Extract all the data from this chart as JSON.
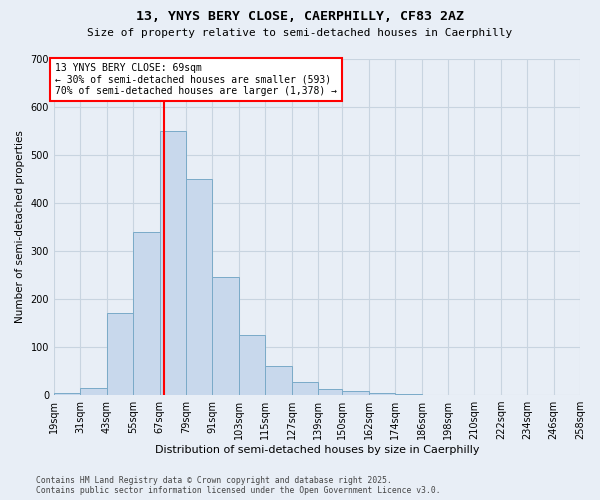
{
  "title_line1": "13, YNYS BERY CLOSE, CAERPHILLY, CF83 2AZ",
  "title_line2": "Size of property relative to semi-detached houses in Caerphilly",
  "xlabel": "Distribution of semi-detached houses by size in Caerphilly",
  "ylabel": "Number of semi-detached properties",
  "bar_color": "#c8d8ec",
  "bar_edge_color": "#7aaac8",
  "grid_color": "#c8d4e0",
  "background_color": "#e8eef6",
  "property_line_x": 69,
  "annotation_text": "13 YNYS BERY CLOSE: 69sqm\n← 30% of semi-detached houses are smaller (593)\n70% of semi-detached houses are larger (1,378) →",
  "annotation_box_color": "white",
  "annotation_box_edge": "red",
  "property_line_color": "red",
  "bin_edges": [
    19,
    31,
    43,
    55,
    67,
    79,
    91,
    103,
    115,
    127,
    139,
    150,
    162,
    174,
    186,
    198,
    210,
    222,
    234,
    246,
    258
  ],
  "bin_labels": [
    "19sqm",
    "31sqm",
    "43sqm",
    "55sqm",
    "67sqm",
    "79sqm",
    "91sqm",
    "103sqm",
    "115sqm",
    "127sqm",
    "139sqm",
    "150sqm",
    "162sqm",
    "174sqm",
    "186sqm",
    "198sqm",
    "210sqm",
    "222sqm",
    "234sqm",
    "246sqm",
    "258sqm"
  ],
  "values": [
    5,
    15,
    170,
    340,
    550,
    450,
    245,
    125,
    60,
    28,
    13,
    9,
    5,
    3,
    1,
    1,
    0,
    0,
    0,
    0
  ],
  "ylim": [
    0,
    700
  ],
  "yticks": [
    0,
    100,
    200,
    300,
    400,
    500,
    600,
    700
  ],
  "footer_line1": "Contains HM Land Registry data © Crown copyright and database right 2025.",
  "footer_line2": "Contains public sector information licensed under the Open Government Licence v3.0."
}
